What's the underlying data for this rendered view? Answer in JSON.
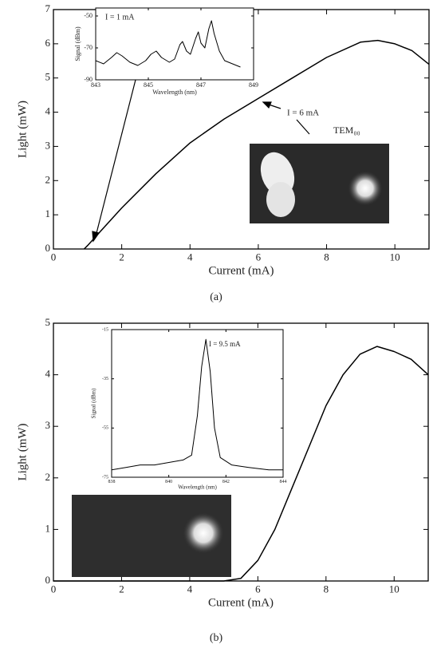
{
  "chart_data": [
    {
      "type": "line",
      "x_label": "Current (mA)",
      "y_label": "Light (mW)",
      "xlim": [
        0,
        11
      ],
      "xticks": [
        0,
        2,
        4,
        6,
        8,
        10
      ],
      "ylim": [
        0,
        7
      ],
      "yticks": [
        0,
        1,
        2,
        3,
        4,
        5,
        6,
        7
      ],
      "x": [
        0.9,
        1,
        2,
        3,
        4,
        5,
        6,
        7,
        8,
        9,
        9.5,
        10,
        10.5,
        11
      ],
      "values": [
        0,
        0.1,
        1.2,
        2.2,
        3.1,
        3.8,
        4.4,
        5.0,
        5.6,
        6.05,
        6.1,
        6.0,
        5.8,
        5.4
      ],
      "color": "#000000",
      "annotations": [
        "I = 6 mA",
        "TEM₀₀"
      ],
      "caption": "(a)"
    },
    {
      "type": "line",
      "x_label": "Wavelength (nm)",
      "y_label": "Signal (dBm)",
      "xlim": [
        843,
        849
      ],
      "xticks": [
        843,
        845,
        847,
        849
      ],
      "ylim": [
        -90,
        -45
      ],
      "yticks": [
        -90,
        -70,
        -50
      ],
      "x": [
        843.0,
        843.3,
        843.6,
        843.8,
        844.0,
        844.3,
        844.6,
        844.9,
        845.1,
        845.3,
        845.5,
        845.8,
        846.0,
        846.2,
        846.3,
        846.45,
        846.6,
        846.8,
        846.9,
        847.0,
        847.15,
        847.3,
        847.4,
        847.5,
        847.7,
        847.9,
        848.2,
        848.5
      ],
      "values": [
        -78,
        -80,
        -76,
        -73,
        -75,
        -79,
        -81,
        -78,
        -74,
        -72,
        -76,
        -79,
        -77,
        -68,
        -66,
        -72,
        -74,
        -64,
        -60,
        -67,
        -70,
        -58,
        -53,
        -61,
        -72,
        -78,
        -80,
        -82
      ],
      "color": "#000000",
      "annotations": [
        "I = 1 mA"
      ]
    },
    {
      "type": "line",
      "x_label": "Current (mA)",
      "y_label": "Light (mW)",
      "xlim": [
        0,
        11
      ],
      "xticks": [
        0,
        2,
        4,
        6,
        8,
        10
      ],
      "ylim": [
        0,
        5
      ],
      "yticks": [
        0,
        1,
        2,
        3,
        4,
        5
      ],
      "x": [
        0,
        5,
        5.5,
        6,
        6.5,
        7,
        7.5,
        8,
        8.5,
        9,
        9.5,
        10,
        10.5,
        11
      ],
      "values": [
        0,
        0,
        0.05,
        0.4,
        1.0,
        1.8,
        2.6,
        3.4,
        4.0,
        4.4,
        4.55,
        4.45,
        4.3,
        4.0
      ],
      "color": "#000000",
      "caption": "(b)"
    },
    {
      "type": "line",
      "x_label": "Wavelength (nm)",
      "y_label": "Signal (dBm)",
      "xlim": [
        838,
        844
      ],
      "xticks": [
        838,
        840,
        842,
        844
      ],
      "ylim": [
        -75,
        -15
      ],
      "yticks": [
        -75,
        -55,
        -35,
        -15
      ],
      "x": [
        838,
        838.5,
        839,
        839.5,
        840,
        840.5,
        840.8,
        841.0,
        841.15,
        841.3,
        841.45,
        841.6,
        841.8,
        842.2,
        842.8,
        843.5,
        844
      ],
      "values": [
        -72,
        -71,
        -70,
        -70,
        -69,
        -68,
        -66,
        -50,
        -30,
        -19,
        -32,
        -55,
        -67,
        -70,
        -71,
        -72,
        -72
      ],
      "color": "#000000",
      "annotations": [
        "I = 9.5 mA"
      ]
    }
  ]
}
